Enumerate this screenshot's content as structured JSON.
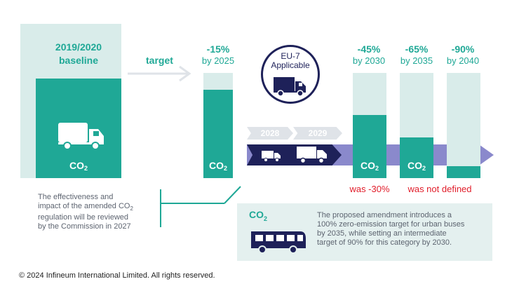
{
  "baseline": {
    "title_line1": "2019/2020",
    "title_line2": "baseline",
    "co2": "CO",
    "sub": "2"
  },
  "target_label": "target",
  "targets": [
    {
      "pct": "-15%",
      "year": "by 2025",
      "co2": "CO",
      "sub": "2",
      "remaining": 0.85
    },
    {
      "pct": "-45%",
      "year": "by 2030",
      "co2": "CO",
      "sub": "2",
      "remaining": 0.55,
      "note": "was -30%"
    },
    {
      "pct": "-65%",
      "year": "by 2035",
      "co2": "CO",
      "sub": "2",
      "remaining": 0.35
    },
    {
      "pct": "-90%",
      "year": "by 2040",
      "remaining": 0.1
    }
  ],
  "note_2035_2040": "was not defined",
  "eu7": {
    "line1": "EU-7",
    "line2": "Applicable"
  },
  "timeline": {
    "year1": "2028",
    "year2": "2029"
  },
  "review_note": {
    "line1": "The effectiveness and",
    "line2a": "impact of the amended CO",
    "line2sub": "2",
    "line3": "regulation will be reviewed",
    "line4": "by the Commission in 2027"
  },
  "bus_box": {
    "co2": "CO",
    "sub": "2",
    "line1": "The proposed amendment introduces a",
    "line2": "100% zero-emission target for urban buses",
    "line3": "by 2035, while setting an intermediate",
    "line4": "target of 90% for this category by 2030."
  },
  "copyright": "© 2024 Infineum International Limited. All rights reserved.",
  "colors": {
    "teal": "#1fa896",
    "light_teal": "#d9ecea",
    "navy": "#1e2159",
    "purple": "#8a89cc",
    "red": "#e11d2a"
  }
}
